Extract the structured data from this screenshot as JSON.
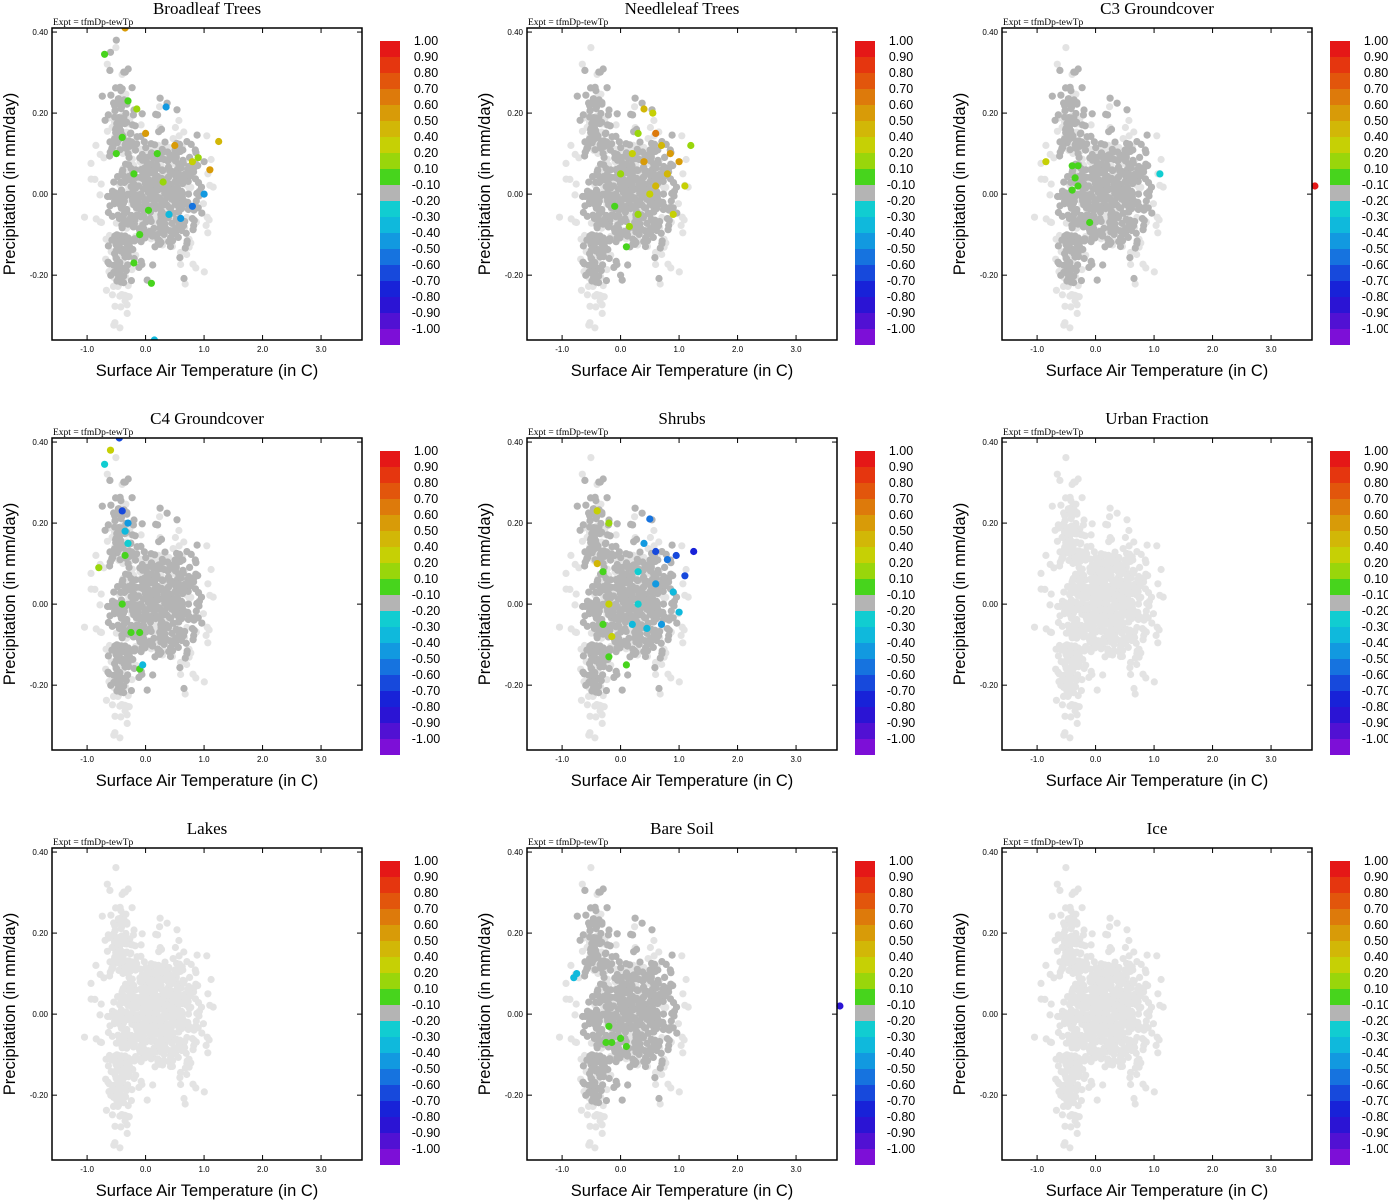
{
  "figure": {
    "expt_label": "Expt = tfmDp-tewTp",
    "xlabel": "Surface Air Temperature (in C)",
    "ylabel": "Precipitation (in mm/day)"
  },
  "colorbar": {
    "labels": [
      "1.00",
      "0.90",
      "0.80",
      "0.70",
      "0.60",
      "0.50",
      "0.40",
      "0.20",
      "0.10",
      "-0.10",
      "-0.20",
      "-0.30",
      "-0.40",
      "-0.50",
      "-0.60",
      "-0.70",
      "-0.80",
      "-0.90",
      "-1.00"
    ],
    "colors": [
      "#e51717",
      "#e5360f",
      "#e2560c",
      "#dd7a0b",
      "#d89b08",
      "#d2b707",
      "#c6d005",
      "#99d60b",
      "#47d41d",
      "#b4b4b4",
      "#11cdd1",
      "#0fb9dc",
      "#1299e0",
      "#1673df",
      "#1749dc",
      "#1822d8",
      "#2b14d4",
      "#5111d3",
      "#7d0fd7"
    ]
  },
  "chart_data": [
    {
      "type": "scatter",
      "title": "Broadleaf Trees",
      "xlabel": "Surface Air Temperature (in C)",
      "ylabel": "Precipitation (in mm/day)",
      "xlim": [
        -1.6,
        3.7
      ],
      "ylim": [
        -0.36,
        0.41
      ],
      "xticks": [
        "-1.0",
        "0.0",
        "1.0",
        "2.0",
        "3.0"
      ],
      "yticks": [
        "0.40",
        "0.20",
        "0.00",
        "-0.20"
      ],
      "grey_points": [
        [
          -0.6,
          0.35
        ],
        [
          -0.5,
          0.38
        ],
        [
          -0.4,
          0.26
        ],
        [
          -0.2,
          0.0
        ],
        [
          0.2,
          -0.1
        ],
        [
          1.0,
          0.08
        ]
      ],
      "colored_points": [
        [
          -0.7,
          0.345,
          0.15
        ],
        [
          -0.35,
          0.41,
          0.6
        ],
        [
          -0.3,
          0.23,
          0.15
        ],
        [
          -0.15,
          0.21,
          0.2
        ],
        [
          0.35,
          0.215,
          -0.4
        ],
        [
          0.0,
          0.15,
          0.55
        ],
        [
          0.5,
          0.12,
          0.55
        ],
        [
          1.25,
          0.13,
          0.45
        ],
        [
          0.8,
          0.08,
          0.35
        ],
        [
          1.1,
          0.06,
          0.6
        ],
        [
          -0.2,
          0.05,
          0.15
        ],
        [
          0.2,
          0.1,
          0.15
        ],
        [
          0.6,
          -0.06,
          -0.4
        ],
        [
          0.4,
          -0.05,
          -0.3
        ],
        [
          0.8,
          -0.03,
          -0.5
        ],
        [
          1.0,
          0.0,
          -0.4
        ],
        [
          -0.1,
          -0.1,
          0.15
        ],
        [
          0.1,
          -0.22,
          0.15
        ],
        [
          -0.2,
          -0.17,
          0.15
        ],
        [
          0.15,
          -0.36,
          -0.3
        ],
        [
          -0.4,
          0.14,
          0.1
        ],
        [
          0.3,
          0.03,
          0.2
        ],
        [
          -0.5,
          0.1,
          0.15
        ],
        [
          0.9,
          0.09,
          0.2
        ],
        [
          0.05,
          -0.04,
          0.15
        ]
      ]
    },
    {
      "type": "scatter",
      "title": "Needleleaf Trees",
      "xlabel": "Surface Air Temperature (in C)",
      "ylabel": "Precipitation (in mm/day)",
      "xlim": [
        -1.6,
        3.7
      ],
      "ylim": [
        -0.36,
        0.41
      ],
      "xticks": [
        "-1.0",
        "0.0",
        "1.0",
        "2.0",
        "3.0"
      ],
      "yticks": [
        "0.40",
        "0.20",
        "0.00",
        "-0.20"
      ],
      "grey_points": [
        [
          0.2,
          0.05
        ],
        [
          -0.1,
          0.1
        ],
        [
          0.5,
          -0.05
        ],
        [
          0.0,
          -0.2
        ]
      ],
      "colored_points": [
        [
          0.4,
          0.21,
          0.45
        ],
        [
          0.55,
          0.2,
          0.4
        ],
        [
          0.6,
          0.15,
          0.7
        ],
        [
          1.0,
          0.08,
          0.6
        ],
        [
          0.8,
          0.05,
          0.5
        ],
        [
          0.5,
          0.0,
          0.4
        ],
        [
          0.3,
          -0.05,
          0.3
        ],
        [
          0.1,
          -0.13,
          0.15
        ],
        [
          0.0,
          0.05,
          0.2
        ],
        [
          0.2,
          0.1,
          0.35
        ],
        [
          0.7,
          0.12,
          0.45
        ],
        [
          1.2,
          0.12,
          0.2
        ],
        [
          0.9,
          -0.05,
          0.4
        ],
        [
          0.4,
          0.08,
          0.55
        ],
        [
          0.6,
          0.02,
          0.5
        ],
        [
          0.15,
          -0.08,
          0.2
        ],
        [
          1.1,
          0.02,
          0.35
        ],
        [
          0.3,
          0.15,
          0.3
        ],
        [
          -0.1,
          -0.03,
          0.15
        ],
        [
          0.85,
          0.1,
          0.6
        ]
      ]
    },
    {
      "type": "scatter",
      "title": "C3 Groundcover",
      "xlabel": "Surface Air Temperature (in C)",
      "ylabel": "Precipitation (in mm/day)",
      "xlim": [
        -1.6,
        3.7
      ],
      "ylim": [
        -0.36,
        0.41
      ],
      "xticks": [
        "-1.0",
        "0.0",
        "1.0",
        "2.0",
        "3.0"
      ],
      "yticks": [
        "0.40",
        "0.20",
        "0.00",
        "-0.20"
      ],
      "grey_points": [],
      "colored_points": [
        [
          -0.85,
          0.08,
          0.35
        ],
        [
          -0.4,
          0.07,
          0.15
        ],
        [
          -0.3,
          0.07,
          0.15
        ],
        [
          -0.35,
          0.04,
          0.15
        ],
        [
          -0.3,
          0.02,
          0.15
        ],
        [
          -0.4,
          0.01,
          0.15
        ],
        [
          -0.1,
          -0.07,
          0.15
        ],
        [
          1.1,
          0.05,
          -0.25
        ],
        [
          3.75,
          0.02,
          1.0
        ]
      ]
    },
    {
      "type": "scatter",
      "title": "C4 Groundcover",
      "xlabel": "Surface Air Temperature (in C)",
      "ylabel": "Precipitation (in mm/day)",
      "xlim": [
        -1.6,
        3.7
      ],
      "ylim": [
        -0.36,
        0.41
      ],
      "xticks": [
        "-1.0",
        "0.0",
        "1.0",
        "2.0",
        "3.0"
      ],
      "yticks": [
        "0.40",
        "0.20",
        "0.00",
        "-0.20"
      ],
      "grey_points": [],
      "colored_points": [
        [
          -0.7,
          0.345,
          -0.25
        ],
        [
          -0.45,
          0.41,
          -0.55
        ],
        [
          -0.6,
          0.38,
          0.4
        ],
        [
          -0.4,
          0.23,
          -0.6
        ],
        [
          -0.3,
          0.2,
          -0.45
        ],
        [
          -0.35,
          0.18,
          -0.3
        ],
        [
          -0.35,
          0.12,
          0.15
        ],
        [
          -0.3,
          0.15,
          -0.25
        ],
        [
          -0.8,
          0.09,
          0.3
        ],
        [
          -0.4,
          0.0,
          0.15
        ],
        [
          -0.25,
          -0.07,
          0.15
        ],
        [
          -0.1,
          -0.07,
          0.15
        ],
        [
          -0.1,
          -0.16,
          0.15
        ],
        [
          -0.05,
          -0.15,
          -0.35
        ]
      ]
    },
    {
      "type": "scatter",
      "title": "Shrubs",
      "xlabel": "Surface Air Temperature (in C)",
      "ylabel": "Precipitation (in mm/day)",
      "xlim": [
        -1.6,
        3.7
      ],
      "ylim": [
        -0.36,
        0.41
      ],
      "xticks": [
        "-1.0",
        "0.0",
        "1.0",
        "2.0",
        "3.0"
      ],
      "yticks": [
        "0.40",
        "0.20",
        "0.00",
        "-0.20"
      ],
      "grey_points": [
        [
          -0.1,
          0.12
        ],
        [
          0.1,
          -0.1
        ]
      ],
      "colored_points": [
        [
          -0.4,
          0.23,
          0.4
        ],
        [
          -0.2,
          0.2,
          0.2
        ],
        [
          0.5,
          0.21,
          -0.5
        ],
        [
          1.25,
          0.13,
          -0.75
        ],
        [
          0.8,
          0.11,
          -0.5
        ],
        [
          1.1,
          0.07,
          -0.6
        ],
        [
          0.6,
          0.05,
          -0.4
        ],
        [
          0.9,
          0.03,
          -0.3
        ],
        [
          0.3,
          0.08,
          -0.25
        ],
        [
          0.2,
          -0.05,
          -0.35
        ],
        [
          0.7,
          -0.05,
          -0.45
        ],
        [
          1.0,
          -0.02,
          -0.3
        ],
        [
          -0.3,
          0.08,
          0.15
        ],
        [
          -0.4,
          0.1,
          0.45
        ],
        [
          -0.2,
          0.0,
          0.35
        ],
        [
          -0.3,
          -0.05,
          0.15
        ],
        [
          -0.15,
          -0.08,
          0.4
        ],
        [
          -0.2,
          -0.13,
          0.15
        ],
        [
          0.1,
          -0.15,
          0.15
        ],
        [
          0.2,
          -0.37,
          0.15
        ],
        [
          0.4,
          0.15,
          -0.4
        ],
        [
          0.6,
          0.13,
          -0.6
        ],
        [
          0.95,
          0.12,
          -0.55
        ],
        [
          0.45,
          -0.06,
          -0.35
        ],
        [
          0.3,
          0.0,
          -0.25
        ]
      ]
    },
    {
      "type": "scatter",
      "title": "Urban Fraction",
      "xlabel": "Surface Air Temperature (in C)",
      "ylabel": "Precipitation (in mm/day)",
      "xlim": [
        -1.6,
        3.7
      ],
      "ylim": [
        -0.36,
        0.41
      ],
      "xticks": [
        "-1.0",
        "0.0",
        "1.0",
        "2.0",
        "3.0"
      ],
      "yticks": [
        "0.40",
        "0.20",
        "0.00",
        "-0.20"
      ],
      "grey_points": [],
      "colored_points": []
    },
    {
      "type": "scatter",
      "title": "Lakes",
      "xlabel": "Surface Air Temperature (in C)",
      "ylabel": "Precipitation (in mm/day)",
      "xlim": [
        -1.6,
        3.7
      ],
      "ylim": [
        -0.36,
        0.41
      ],
      "xticks": [
        "-1.0",
        "0.0",
        "1.0",
        "2.0",
        "3.0"
      ],
      "yticks": [
        "0.40",
        "0.20",
        "0.00",
        "-0.20"
      ],
      "grey_points": [],
      "colored_points": []
    },
    {
      "type": "scatter",
      "title": "Bare Soil",
      "xlabel": "Surface Air Temperature (in C)",
      "ylabel": "Precipitation (in mm/day)",
      "xlim": [
        -1.6,
        3.7
      ],
      "ylim": [
        -0.36,
        0.41
      ],
      "xticks": [
        "-1.0",
        "0.0",
        "1.0",
        "2.0",
        "3.0"
      ],
      "yticks": [
        "0.40",
        "0.20",
        "0.00",
        "-0.20"
      ],
      "grey_points": [],
      "colored_points": [
        [
          -0.8,
          0.09,
          -0.35
        ],
        [
          -0.75,
          0.1,
          -0.3
        ],
        [
          -0.2,
          -0.03,
          0.15
        ],
        [
          -0.25,
          -0.07,
          0.15
        ],
        [
          -0.15,
          -0.07,
          0.15
        ],
        [
          0.1,
          -0.08,
          0.15
        ],
        [
          0.0,
          -0.06,
          0.15
        ],
        [
          3.75,
          0.02,
          -0.85
        ]
      ]
    },
    {
      "type": "scatter",
      "title": "Ice",
      "xlabel": "Surface Air Temperature (in C)",
      "ylabel": "Precipitation (in mm/day)",
      "xlim": [
        -1.6,
        3.7
      ],
      "ylim": [
        -0.36,
        0.41
      ],
      "xticks": [
        "-1.0",
        "0.0",
        "1.0",
        "2.0",
        "3.0"
      ],
      "yticks": [
        "0.40",
        "0.20",
        "0.00",
        "-0.20"
      ],
      "grey_points": [],
      "colored_points": []
    }
  ]
}
